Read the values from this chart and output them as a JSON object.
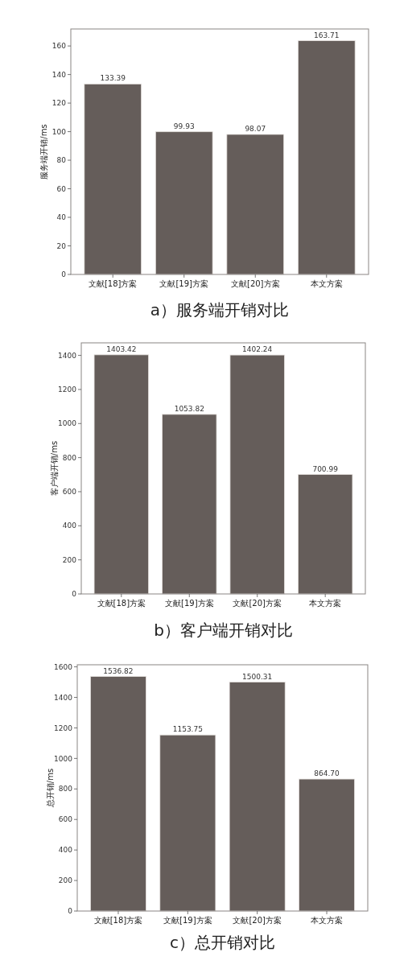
{
  "chart_data": [
    {
      "type": "bar",
      "title": "a）服务端开销对比",
      "ylabel": "服务端开销/ms",
      "categories": [
        "文献[18]方案",
        "文献[19]方案",
        "文献[20]方案",
        "本文方案"
      ],
      "values": [
        133.39,
        99.93,
        98.07,
        163.71
      ],
      "value_labels": [
        "133.39",
        "99.93",
        "98.07",
        "163.71"
      ],
      "color": "#655d5a",
      "ylim": [
        0,
        171.9
      ],
      "yticks": [
        0,
        20,
        40,
        60,
        80,
        100,
        120,
        140,
        160
      ]
    },
    {
      "type": "bar",
      "title": "b）客户端开销对比",
      "ylabel": "客户端开销/ms",
      "categories": [
        "文献[18]方案",
        "文献[19]方案",
        "文献[20]方案",
        "本文方案"
      ],
      "values": [
        1403.42,
        1053.82,
        1402.24,
        700.99
      ],
      "value_labels": [
        "1403.42",
        "1053.82",
        "1402.24",
        "700.99"
      ],
      "color": "#655d5a",
      "ylim": [
        0,
        1473.6
      ],
      "yticks": [
        0,
        200,
        400,
        600,
        800,
        1000,
        1200,
        1400
      ]
    },
    {
      "type": "bar",
      "title": "c）总开销对比",
      "ylabel": "总开销/ms",
      "categories": [
        "文献[18]方案",
        "文献[19]方案",
        "文献[20]方案",
        "本文方案"
      ],
      "values": [
        1536.82,
        1153.75,
        1500.31,
        864.7
      ],
      "value_labels": [
        "1536.82",
        "1153.75",
        "1500.31",
        "864.70"
      ],
      "color": "#655d5a",
      "ylim": [
        0,
        1613.7
      ],
      "yticks": [
        0,
        200,
        400,
        600,
        800,
        1000,
        1200,
        1400,
        1600
      ]
    }
  ]
}
